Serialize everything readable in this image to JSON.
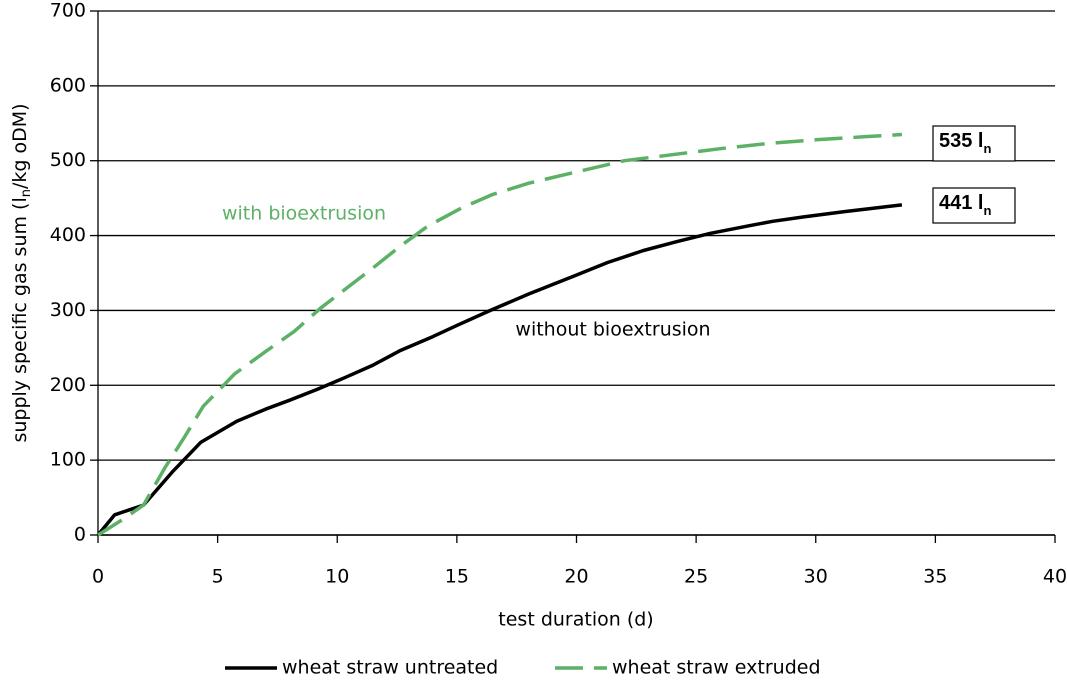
{
  "chart_data": {
    "type": "line",
    "x_label": "test duration (d)",
    "y_label": [
      "supply specific gas sum (l",
      "n",
      "/kg oDM)"
    ],
    "xlim": [
      0,
      40
    ],
    "xticks": [
      0,
      5,
      10,
      15,
      20,
      25,
      30,
      35,
      40
    ],
    "ylim": [
      0,
      700
    ],
    "yticks": [
      0,
      100,
      200,
      300,
      400,
      500,
      600,
      700
    ],
    "grid": true,
    "series": [
      {
        "name": "wheat straw untreated",
        "color": "#000000",
        "dash": false,
        "x": [
          0,
          0.7,
          1.9,
          3.1,
          4.3,
          5.8,
          7,
          8,
          9.2,
          10.3,
          11.5,
          12.6,
          14,
          15,
          16.4,
          18,
          19.9,
          21.3,
          22.8,
          24.2,
          25.6,
          27.2,
          28.2,
          29.5,
          31.2,
          32.8,
          33.6
        ],
        "values": [
          0,
          27,
          40,
          84,
          124,
          152,
          168,
          180,
          195,
          210,
          227,
          246,
          265,
          280,
          300,
          322,
          346,
          364,
          380,
          392,
          403,
          413,
          419,
          425,
          432,
          438,
          441
        ]
      },
      {
        "name": "wheat straw extruded",
        "color": "#5cb166",
        "dash": true,
        "x": [
          0,
          1,
          1.9,
          2.8,
          3.6,
          4.4,
          5.7,
          7,
          8.2,
          9.3,
          10.4,
          11.5,
          12.6,
          13.8,
          15.2,
          16.5,
          18,
          20,
          22,
          24,
          26,
          28,
          30,
          32,
          33.6
        ],
        "values": [
          0,
          20,
          40,
          90,
          130,
          172,
          215,
          245,
          272,
          303,
          330,
          357,
          385,
          413,
          437,
          455,
          470,
          485,
          500,
          508,
          516,
          523,
          528,
          532,
          535
        ]
      }
    ],
    "annotations": [
      {
        "text": "with bioextrusion",
        "color": "#5cb166"
      },
      {
        "text": "without bioextrusion",
        "color": "#000000"
      }
    ],
    "end_labels": [
      {
        "text": "535 l",
        "sub": "n"
      },
      {
        "text": "441 l",
        "sub": "n"
      }
    ]
  }
}
